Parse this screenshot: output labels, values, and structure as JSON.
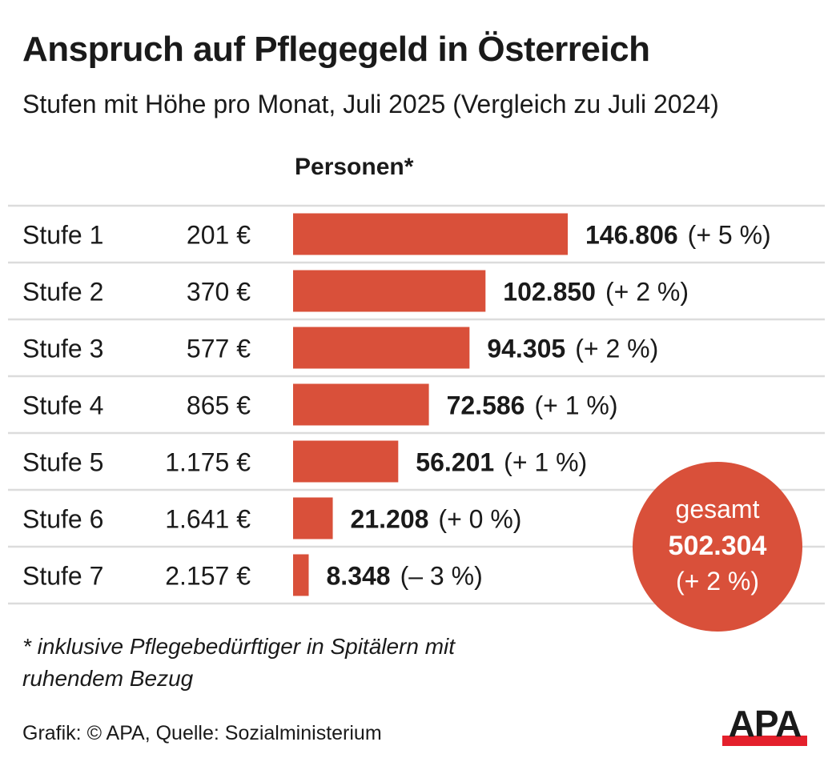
{
  "header": {
    "title": "Anspruch auf Pflegegeld in Österreich",
    "subtitle": "Stufen mit Höhe pro Monat, Juli 2025 (Vergleich zu Juli 2024)",
    "column_header": "Personen*"
  },
  "colors": {
    "bar": "#D9503A",
    "total_circle": "#D9503A",
    "separator": "#DCDCDC",
    "text": "#1a1a1a",
    "logo_bar": "#E4202C"
  },
  "chart_data": {
    "type": "bar",
    "orientation": "horizontal",
    "title": "Anspruch auf Pflegegeld in Österreich",
    "subtitle": "Stufen mit Höhe pro Monat, Juli 2025 (Vergleich zu Juli 2024)",
    "xlabel": "Personen*",
    "ylabel": "",
    "grid": false,
    "categories": [
      "Stufe 1",
      "Stufe 2",
      "Stufe 3",
      "Stufe 4",
      "Stufe 5",
      "Stufe 6",
      "Stufe 7"
    ],
    "amounts": [
      "201 €",
      "370 €",
      "577 €",
      "865 €",
      "1.175 €",
      "1.641 €",
      "2.157 €"
    ],
    "values": [
      146806,
      102850,
      94305,
      72586,
      56201,
      21208,
      8348
    ],
    "value_labels": [
      "146.806",
      "102.850",
      "94.305",
      "72.586",
      "56.201",
      "21.208",
      "8.348"
    ],
    "change_labels": [
      "(+ 5 %)",
      "(+ 2 %)",
      "(+ 2 %)",
      "(+ 1 %)",
      "(+ 1 %)",
      "(+ 0 %)",
      "(– 3 %)"
    ],
    "xlim": [
      0,
      146806
    ],
    "total": {
      "label": "gesamt",
      "value": 502304,
      "value_label": "502.304",
      "change_label": "(+ 2 %)"
    }
  },
  "footer": {
    "footnote": "* inklusive Pflegebedürftiger in Spitälern mit ruhendem Bezug",
    "source": "Grafik: © APA, Quelle: Sozialministerium",
    "logo_text": "APA"
  }
}
